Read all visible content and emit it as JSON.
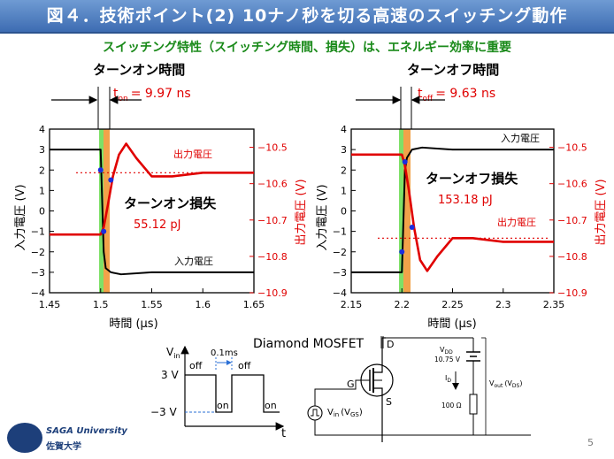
{
  "title": "図４．技術ポイント(2) 10ナノ秒を切る高速のスイッチング動作",
  "subtitle": "スイッチング特性（スイッチング時間、損失）は、エネルギー効率に重要",
  "left_panel": {
    "heading": "ターンオン時間",
    "time_label": "t",
    "time_sub": "on",
    "time_value": "= 9.97 ns",
    "loss_title": "ターンオン損失",
    "loss_value": "55.12 pJ",
    "out_label": "出力電圧",
    "in_label": "入力電圧"
  },
  "right_panel": {
    "heading": "ターンオフ時間",
    "time_label": "t",
    "time_sub": "off",
    "time_value": "= 9.63 ns",
    "loss_title": "ターンオフ損失",
    "loss_value": "153.18 pJ",
    "out_label": "出力電圧",
    "in_label": "入力電圧"
  },
  "axes": {
    "ylabel_left": "入力電圧 (V)",
    "ylabel_right": "出力電圧 (V)",
    "xlabel": "時間 (μs)",
    "y_left_ticks": [
      "4",
      "3",
      "2",
      "1",
      "0",
      "−1",
      "−2",
      "−3",
      "−4"
    ],
    "y_right_ticks": [
      "−10.5",
      "−10.6",
      "−10.7",
      "−10.8",
      "−10.9"
    ],
    "x_ticks_left": [
      "1.45",
      "1.5",
      "1.55",
      "1.6",
      "1.65"
    ],
    "x_ticks_right": [
      "2.15",
      "2.2",
      "2.25",
      "2.3",
      "2.35"
    ]
  },
  "chart_data": [
    {
      "type": "line",
      "title": "ターンオン時間",
      "xlabel": "時間 (μs)",
      "ylabel": "入力電圧 (V)",
      "y2label": "出力電圧 (V)",
      "xlim": [
        1.45,
        1.65
      ],
      "ylim": [
        -4,
        4
      ],
      "y2lim": [
        -10.9,
        -10.45
      ],
      "series": [
        {
          "name": "入力電圧",
          "axis": "left",
          "color": "#000000",
          "x": [
            1.45,
            1.5,
            1.503,
            1.505,
            1.51,
            1.52,
            1.55,
            1.6,
            1.65
          ],
          "y": [
            3.0,
            3.0,
            -2.0,
            -2.8,
            -3.0,
            -3.1,
            -3.0,
            -3.0,
            -3.0
          ]
        },
        {
          "name": "出力電圧",
          "axis": "right",
          "color": "#e00000",
          "x": [
            1.45,
            1.5,
            1.503,
            1.507,
            1.512,
            1.518,
            1.525,
            1.535,
            1.55,
            1.57,
            1.6,
            1.65
          ],
          "y": [
            -10.74,
            -10.74,
            -10.72,
            -10.66,
            -10.58,
            -10.52,
            -10.49,
            -10.53,
            -10.58,
            -10.58,
            -10.57,
            -10.57
          ]
        }
      ],
      "markers": [
        {
          "x": 1.5,
          "y": 2.0,
          "axis": "left"
        },
        {
          "x": 1.503,
          "y": -1.0,
          "axis": "left"
        },
        {
          "x": 1.51,
          "y": -10.59,
          "axis": "right"
        }
      ],
      "reference_y2": -10.57
    },
    {
      "type": "line",
      "title": "ターンオフ時間",
      "xlabel": "時間 (μs)",
      "ylabel": "入力電圧 (V)",
      "y2label": "出力電圧 (V)",
      "xlim": [
        2.15,
        2.35
      ],
      "ylim": [
        -4,
        4
      ],
      "y2lim": [
        -10.9,
        -10.45
      ],
      "series": [
        {
          "name": "入力電圧",
          "axis": "left",
          "color": "#000000",
          "x": [
            2.15,
            2.2,
            2.203,
            2.205,
            2.21,
            2.22,
            2.25,
            2.3,
            2.35
          ],
          "y": [
            -3.0,
            -3.0,
            2.0,
            2.6,
            3.0,
            3.1,
            3.0,
            3.0,
            3.0
          ]
        },
        {
          "name": "出力電圧",
          "axis": "right",
          "color": "#e00000",
          "x": [
            2.15,
            2.2,
            2.203,
            2.207,
            2.212,
            2.218,
            2.225,
            2.235,
            2.25,
            2.27,
            2.3,
            2.35
          ],
          "y": [
            -10.52,
            -10.52,
            -10.55,
            -10.62,
            -10.72,
            -10.81,
            -10.84,
            -10.8,
            -10.75,
            -10.75,
            -10.76,
            -10.76
          ]
        }
      ],
      "markers": [
        {
          "x": 2.2,
          "y": -2.0,
          "axis": "left"
        },
        {
          "x": 2.203,
          "y": 2.4,
          "axis": "left"
        },
        {
          "x": 2.21,
          "y": -10.72,
          "axis": "right"
        }
      ],
      "reference_y2": -10.75
    }
  ],
  "circuit": {
    "vin_label": "V",
    "vin_sub": "in",
    "level_high": "3 V",
    "level_low": "−3 V",
    "off_label": "off",
    "on_label": "on",
    "width_label": "0.1ms",
    "t_label": "t",
    "device_title": "Diamond MOSFET",
    "d_label": "D",
    "g_label": "G",
    "s_label": "S",
    "vgs_label": "V",
    "vgs_sub": "in",
    "vgs_paren": "(V",
    "vgs_paren_sub": "GS",
    "vgs_close": ")",
    "vdd_label": "V",
    "vdd_sub": "DD",
    "vdd_value": "10.75 V",
    "id_label": "I",
    "id_sub": "D",
    "r_value": "100 Ω",
    "vout_label": "V",
    "vout_sub": "out",
    "vout_paren": "(V",
    "vout_paren_sub": "DS",
    "vout_close": ")"
  },
  "footer": {
    "univ_en": "SAGA University",
    "univ_jp": "佐賀大学",
    "page": "5"
  },
  "colors": {
    "title_bg": "#3d6cb2",
    "subtitle": "#1a8a1a",
    "output_trace": "#e00000",
    "input_trace": "#000000",
    "marker": "#1a2ee0",
    "green_band": "#7ee067",
    "orange_band": "#f2a24a"
  }
}
